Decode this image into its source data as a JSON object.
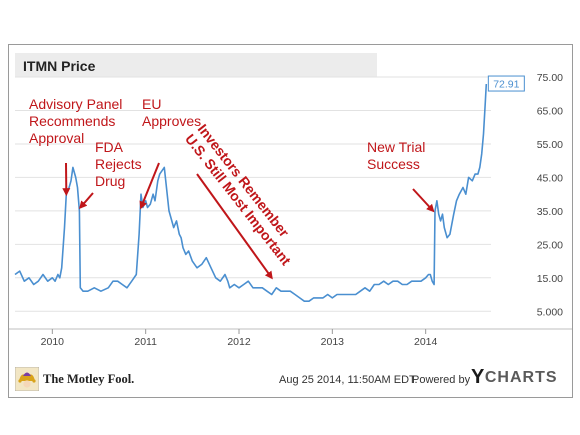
{
  "chart_data": {
    "type": "line",
    "title": "ITMN Price",
    "xlabel": "",
    "ylabel": "",
    "x_ticks": [
      "2010",
      "2011",
      "2012",
      "2013",
      "2014"
    ],
    "y_ticks": [
      "5.000",
      "15.00",
      "25.00",
      "35.00",
      "45.00",
      "55.00",
      "65.00",
      "75.00"
    ],
    "ylim": [
      0,
      78
    ],
    "xlim": [
      2009.6,
      2014.7
    ],
    "grid": "horizontal",
    "last_value_label": "72.91",
    "series": [
      {
        "color": "#4a8fd0",
        "x": [
          2009.6,
          2009.65,
          2009.7,
          2009.75,
          2009.8,
          2009.85,
          2009.9,
          2009.95,
          2010.0,
          2010.03,
          2010.06,
          2010.08,
          2010.1,
          2010.13,
          2010.15,
          2010.18,
          2010.2,
          2010.22,
          2010.25,
          2010.27,
          2010.29,
          2010.3,
          2010.33,
          2010.38,
          2010.45,
          2010.52,
          2010.6,
          2010.65,
          2010.7,
          2010.75,
          2010.8,
          2010.85,
          2010.9,
          2010.93,
          2010.95,
          2010.97,
          2011.0,
          2011.02,
          2011.05,
          2011.08,
          2011.1,
          2011.13,
          2011.15,
          2011.2,
          2011.25,
          2011.3,
          2011.33,
          2011.36,
          2011.38,
          2011.4,
          2011.43,
          2011.46,
          2011.5,
          2011.55,
          2011.6,
          2011.65,
          2011.7,
          2011.75,
          2011.8,
          2011.85,
          2011.88,
          2011.9,
          2011.95,
          2012.0,
          2012.05,
          2012.1,
          2012.15,
          2012.2,
          2012.25,
          2012.3,
          2012.35,
          2012.4,
          2012.45,
          2012.5,
          2012.55,
          2012.6,
          2012.65,
          2012.7,
          2012.75,
          2012.8,
          2012.85,
          2012.9,
          2012.95,
          2013.0,
          2013.05,
          2013.1,
          2013.15,
          2013.2,
          2013.25,
          2013.3,
          2013.35,
          2013.4,
          2013.45,
          2013.5,
          2013.55,
          2013.6,
          2013.65,
          2013.7,
          2013.75,
          2013.8,
          2013.85,
          2013.9,
          2013.95,
          2014.0,
          2014.03,
          2014.05,
          2014.07,
          2014.09,
          2014.1,
          2014.12,
          2014.14,
          2014.16,
          2014.18,
          2014.2,
          2014.23,
          2014.26,
          2014.3,
          2014.33,
          2014.36,
          2014.4,
          2014.43,
          2014.46,
          2014.5,
          2014.53,
          2014.56,
          2014.58,
          2014.6,
          2014.62,
          2014.64,
          2014.65
        ],
        "values": [
          16,
          17,
          14,
          15,
          13,
          14,
          16,
          14,
          15,
          14,
          16,
          15,
          18,
          30,
          40,
          42,
          44,
          48,
          45,
          42,
          35,
          12,
          11,
          11,
          12,
          11,
          12,
          14,
          14,
          13,
          12,
          14,
          16,
          28,
          40,
          36,
          38,
          36,
          37,
          40,
          38,
          44,
          46,
          48,
          35,
          30,
          32,
          28,
          27,
          24,
          22,
          23,
          20,
          18,
          19,
          21,
          18,
          15,
          14,
          16,
          14,
          12,
          13,
          12,
          13,
          14,
          12,
          12,
          12,
          11,
          10,
          12,
          11,
          11,
          11,
          10,
          9,
          8,
          8,
          9,
          9,
          9,
          10,
          9,
          10,
          10,
          10,
          10,
          10,
          11,
          12,
          11,
          13,
          13,
          14,
          13,
          14,
          14,
          13,
          13,
          14,
          14,
          14,
          15,
          16,
          16,
          14,
          13,
          35,
          38,
          34,
          32,
          34,
          30,
          27,
          28,
          34,
          38,
          40,
          42,
          40,
          45,
          44,
          46,
          46,
          48,
          52,
          58,
          68,
          72.91
        ]
      }
    ],
    "annotations": [
      {
        "lines": [
          "Advisory Panel",
          "Recommends",
          "Approval"
        ],
        "target": [
          2010.15,
          40
        ]
      },
      {
        "lines": [
          "FDA",
          "Rejects",
          "Drug"
        ],
        "target": [
          2010.3,
          36
        ]
      },
      {
        "lines": [
          "EU",
          "Approves"
        ],
        "target": [
          2010.95,
          36
        ]
      },
      {
        "lines": [
          "Investors Remember",
          "U.S. Still Most Important"
        ],
        "rotate": 52,
        "start": [
          2011.45,
          43
        ],
        "target": [
          2012.35,
          15
        ]
      },
      {
        "lines": [
          "New Trial",
          "Success"
        ],
        "target": [
          2014.08,
          35
        ]
      }
    ]
  },
  "footer": {
    "brand": "The Motley Fool.",
    "timestamp": "Aug 25 2014, 11:50AM EDT.",
    "powered_by": "Powered by",
    "ycharts_y": "Y",
    "ycharts_rest": "CHARTS"
  }
}
